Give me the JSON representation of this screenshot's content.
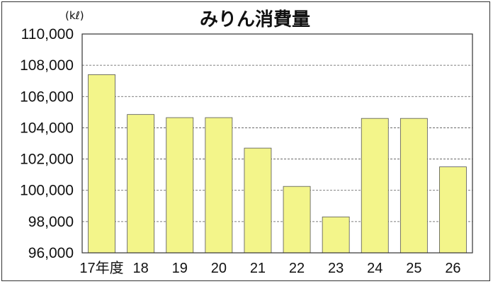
{
  "chart_data": {
    "type": "bar",
    "title": "みりん消費量",
    "unit_label": "(kℓ)",
    "categories": [
      "17年度",
      "18",
      "19",
      "20",
      "21",
      "22",
      "23",
      "24",
      "25",
      "26"
    ],
    "values": [
      107400,
      104850,
      104650,
      104650,
      102700,
      100250,
      98300,
      104600,
      104600,
      101500
    ],
    "ylim": [
      96000,
      110000
    ],
    "y_ticks": [
      96000,
      98000,
      100000,
      102000,
      104000,
      106000,
      108000,
      110000
    ],
    "y_tick_labels": [
      "96,000",
      "98,000",
      "100,000",
      "102,000",
      "104,000",
      "106,000",
      "108,000",
      "110,000"
    ],
    "grid": "horizontal-dashed",
    "bar_color": "#f3f58a",
    "bar_stroke": "#555555",
    "grid_color": "#555555"
  }
}
